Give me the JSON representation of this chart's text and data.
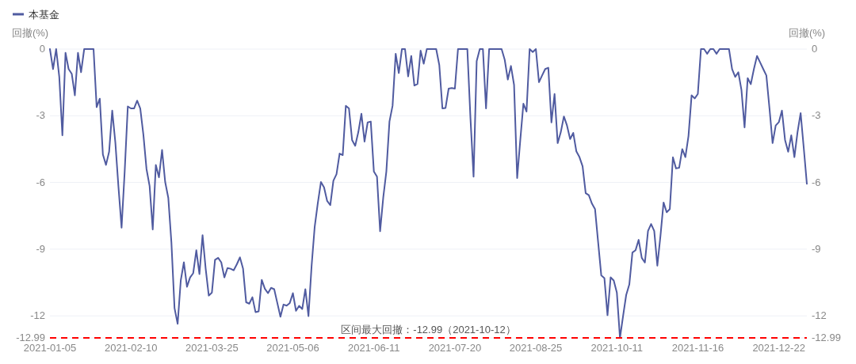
{
  "chart_data": {
    "type": "line",
    "categories": [
      "2021-01-05",
      null,
      null,
      null,
      null,
      null,
      null,
      null,
      null,
      null,
      null,
      null,
      null,
      null,
      null,
      null,
      null,
      null,
      null,
      null,
      null,
      null,
      null,
      null,
      null,
      null,
      "2021-02-10",
      null,
      null,
      null,
      null,
      null,
      null,
      null,
      null,
      null,
      null,
      null,
      null,
      null,
      null,
      null,
      null,
      null,
      null,
      null,
      null,
      null,
      null,
      null,
      null,
      null,
      "2021-03-25",
      null,
      null,
      null,
      null,
      null,
      null,
      null,
      null,
      null,
      null,
      null,
      null,
      null,
      null,
      null,
      null,
      null,
      null,
      null,
      null,
      null,
      null,
      null,
      null,
      null,
      "2021-05-06",
      null,
      null,
      null,
      null,
      null,
      null,
      null,
      null,
      null,
      null,
      null,
      null,
      null,
      null,
      null,
      null,
      null,
      null,
      null,
      null,
      null,
      null,
      null,
      null,
      null,
      "2021-06-11",
      null,
      null,
      null,
      null,
      null,
      null,
      null,
      null,
      null,
      null,
      null,
      null,
      null,
      null,
      null,
      null,
      null,
      null,
      null,
      null,
      null,
      null,
      null,
      null,
      null,
      "2021-07-20",
      null,
      null,
      null,
      null,
      null,
      null,
      null,
      null,
      null,
      null,
      null,
      null,
      null,
      null,
      null,
      null,
      null,
      null,
      null,
      null,
      null,
      null,
      null,
      null,
      null,
      "2021-08-25",
      null,
      null,
      null,
      null,
      null,
      null,
      null,
      null,
      null,
      null,
      null,
      null,
      null,
      null,
      null,
      null,
      null,
      null,
      null,
      null,
      null,
      null,
      null,
      null,
      null,
      "2021-10-11",
      null,
      null,
      null,
      null,
      null,
      null,
      null,
      null,
      null,
      null,
      null,
      null,
      null,
      null,
      null,
      null,
      null,
      null,
      null,
      null,
      null,
      null,
      null,
      null,
      null,
      "2021-11-16",
      null,
      null,
      null,
      null,
      null,
      null,
      null,
      null,
      null,
      null,
      null,
      null,
      null,
      null,
      null,
      null,
      null,
      null,
      null,
      null,
      null,
      null,
      null,
      null,
      null,
      "2021-12-22",
      null,
      null,
      null,
      null,
      null,
      null,
      null,
      null,
      null
    ],
    "series": [
      {
        "name": "本基金",
        "color": "#505ba0",
        "values": [
          0,
          -0.9,
          0,
          -1.25,
          -3.88,
          -0.17,
          -0.9,
          -1.11,
          -2.08,
          -0.17,
          -1.04,
          0,
          0,
          0,
          0,
          -2.61,
          -2.23,
          -4.74,
          -5.21,
          -4.62,
          -2.77,
          -4.2,
          -6.2,
          -8.03,
          -5.5,
          -2.58,
          -2.67,
          -2.67,
          -2.32,
          -2.67,
          -3.85,
          -5.39,
          -6.16,
          -8.11,
          -5.21,
          -5.77,
          -4.54,
          -5.98,
          -6.69,
          -8.7,
          -11.65,
          -12.36,
          -10.41,
          -9.59,
          -10.69,
          -10.27,
          -10.08,
          -9.05,
          -10.12,
          -8.37,
          -9.88,
          -11.09,
          -10.95,
          -9.48,
          -9.39,
          -9.59,
          -10.27,
          -9.85,
          -9.88,
          -9.95,
          -9.68,
          -9.37,
          -9.88,
          -11.39,
          -11.45,
          -11.16,
          -11.83,
          -11.8,
          -10.38,
          -10.78,
          -10.98,
          -10.74,
          -10.8,
          -11.42,
          -12.04,
          -11.49,
          -11.54,
          -11.42,
          -10.98,
          -11.77,
          -11.55,
          -11.69,
          -10.8,
          -12.01,
          -9.76,
          -7.99,
          -6.93,
          -5.98,
          -6.22,
          -6.83,
          -7.02,
          -5.92,
          -5.63,
          -4.7,
          -4.77,
          -2.55,
          -2.67,
          -4.09,
          -4.35,
          -3.74,
          -2.91,
          -4.16,
          -3.3,
          -3.26,
          -5.51,
          -5.74,
          -8.19,
          -6.69,
          -5.51,
          -3.26,
          -2.55,
          -0.21,
          -1.08,
          0,
          0,
          -1.23,
          -0.31,
          -1.64,
          -1.57,
          -0.07,
          -0.66,
          0,
          0,
          0,
          0,
          -0.72,
          -2.67,
          -2.65,
          -1.78,
          -1.75,
          -1.78,
          0,
          0,
          0,
          0,
          -3.1,
          -5.74,
          -0.54,
          0,
          0,
          -2.67,
          0,
          0,
          0,
          0,
          0,
          -0.48,
          -1.37,
          -0.76,
          -1.61,
          -5.8,
          -4.09,
          -2.46,
          -2.81,
          0,
          -0.13,
          0,
          -1.49,
          -1.19,
          -0.9,
          -0.84,
          -3.3,
          -2.02,
          -4.23,
          -3.74,
          -3.03,
          -3.44,
          -4.05,
          -3.77,
          -4.6,
          -4.86,
          -5.27,
          -6.48,
          -6.57,
          -6.95,
          -7.2,
          -8.7,
          -10.18,
          -10.3,
          -11.97,
          -10.27,
          -10.41,
          -10.95,
          -12.99,
          -12.01,
          -11.06,
          -10.59,
          -9.15,
          -9.05,
          -8.58,
          -9.39,
          -9.6,
          -8.18,
          -7.87,
          -8.18,
          -9.74,
          -8.4,
          -6.9,
          -7.34,
          -7.2,
          -4.87,
          -5.37,
          -5.34,
          -4.5,
          -4.86,
          -3.91,
          -2.08,
          -2.22,
          -2.02,
          0,
          0,
          -0.21,
          0,
          0,
          -0.21,
          0,
          0,
          0,
          0,
          -0.9,
          -1.25,
          -1.04,
          -1.84,
          -3.52,
          -1.31,
          -1.58,
          -0.9,
          -0.31,
          -0.6,
          -0.9,
          -1.19,
          -2.67,
          -4.23,
          -3.44,
          -3.29,
          -2.77,
          -4.09,
          -4.62,
          -3.88,
          -4.86,
          -3.74,
          -2.88,
          -4.44,
          -6.06
        ]
      }
    ],
    "ylabel": "回撤(%)",
    "y2label": "回撤(%)",
    "ylim": [
      -12.99,
      0
    ],
    "yticks": [
      0,
      -3,
      -6,
      -9,
      -12,
      -12.99
    ],
    "y2lim": [
      -12.99,
      0
    ],
    "y2ticks": [
      0,
      -3,
      -6,
      -9,
      -12,
      -12.99
    ],
    "ref_lines": [
      {
        "axis": "y",
        "value": -12.99,
        "label": "区间最大回撤：-12.99（2021-10-12）",
        "color": "#ff0000",
        "line_style": "dashed"
      }
    ],
    "grid": "y",
    "legend": "top left"
  }
}
